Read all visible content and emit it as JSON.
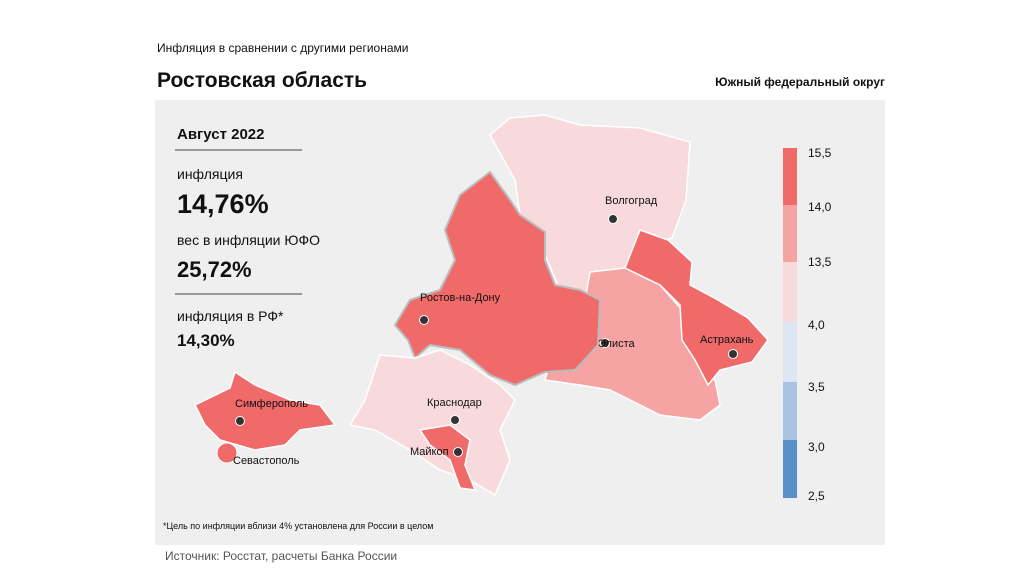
{
  "header": {
    "subtitle": "Инфляция  в сравнении  с другими  регионами",
    "title": "Ростовская область",
    "region_group": "Южный федеральный округ"
  },
  "summary": {
    "period": "Август 2022",
    "inflation_label": "инфляция",
    "inflation_value": "14,76%",
    "weight_label": "вес в инфляции  ЮФО",
    "weight_value": "25,72%",
    "rf_label": "инфляция  в РФ*",
    "rf_value": "14,30%"
  },
  "legend": {
    "labels": [
      "15,5",
      "14,0",
      "13,5",
      "4,0",
      "3,5",
      "3,0",
      "2,5"
    ]
  },
  "cities": [
    "Волгоград",
    "Ростов-на-Дону",
    "Элиста",
    "Астрахань",
    "Краснодар",
    "Майкоп",
    "Симферополь",
    "Севастополь"
  ],
  "footnote": "*Цель по инфляции вблизи 4% установлена для России в целом",
  "source": "Источник: Росстат, расчеты Банка России"
}
